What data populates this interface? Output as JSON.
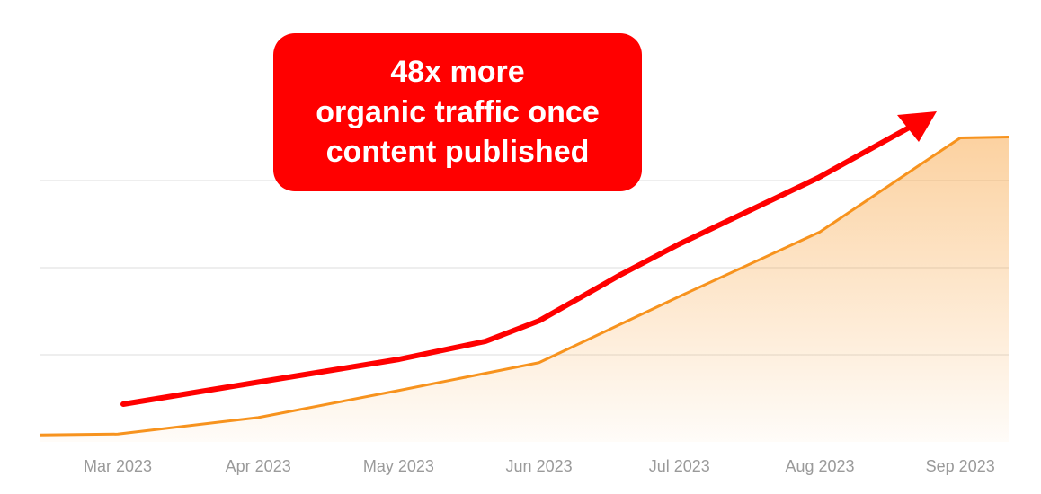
{
  "chart_data": {
    "type": "area",
    "annotation": [
      "48x more",
      "organic traffic once",
      "content published"
    ],
    "categories": [
      null,
      "Mar 2023",
      "Apr 2023",
      "May 2023",
      "Jun 2023",
      "Jul 2023",
      "Aug 2023",
      "Sep 2023",
      null
    ],
    "values": [
      0.08,
      0.09,
      0.28,
      0.59,
      0.91,
      1.67,
      2.41,
      3.49,
      3.5
    ],
    "color": "#f7931e",
    "ylim": [
      0,
      4
    ],
    "yticks": [
      1,
      2,
      3
    ],
    "grid": true,
    "show_tick_labels": false
  }
}
